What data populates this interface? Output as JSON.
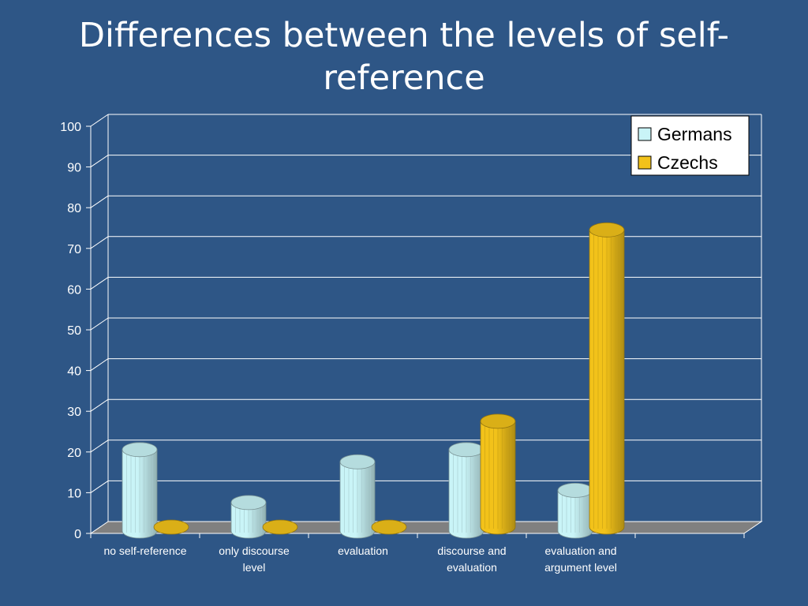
{
  "slide": {
    "title_line1": "Differences between the levels of self-",
    "title_line2": "reference"
  },
  "chart_data": {
    "type": "bar",
    "style": "3d-cylinder",
    "categories": [
      [
        "no self-reference"
      ],
      [
        "only discourse",
        "level"
      ],
      [
        "evaluation"
      ],
      [
        "discourse and",
        "evaluation"
      ],
      [
        "evaluation and",
        "argument level"
      ]
    ],
    "series": [
      {
        "name": "Germans",
        "values": [
          20,
          7,
          17,
          20,
          10
        ],
        "color": "#c9f4f7"
      },
      {
        "name": "Czechs",
        "values": [
          0,
          0,
          0,
          26,
          73
        ],
        "color": "#f2c21a"
      }
    ],
    "ylim": [
      0,
      100
    ],
    "yticks": [
      0,
      10,
      20,
      30,
      40,
      50,
      60,
      70,
      80,
      90,
      100
    ],
    "grid": true,
    "legend_position": "top-right",
    "colors": {
      "background": "#2e5686",
      "floor": "#808080",
      "grid": "#ffffff"
    }
  }
}
